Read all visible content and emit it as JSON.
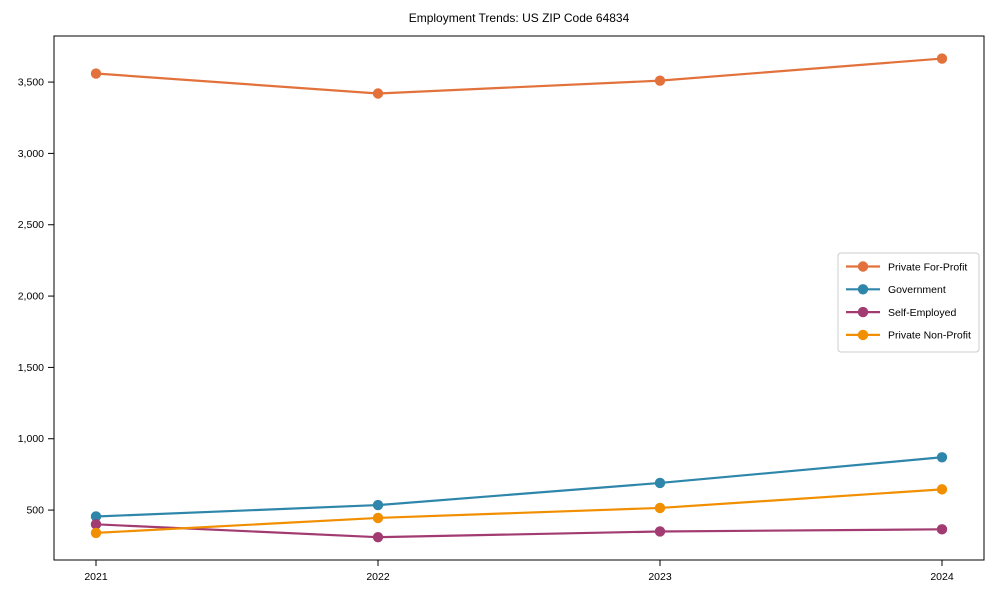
{
  "chart_data": {
    "type": "line",
    "title": "Employment Trends: US ZIP Code 64834",
    "xlabel": "",
    "ylabel": "",
    "categories": [
      "2021",
      "2022",
      "2023",
      "2024"
    ],
    "x": [
      2021,
      2022,
      2023,
      2024
    ],
    "series": [
      {
        "name": "Private For-Profit",
        "color": "#E2713B",
        "values": [
          3560,
          3420,
          3510,
          3665
        ]
      },
      {
        "name": "Government",
        "color": "#2E86AB",
        "values": [
          455,
          535,
          690,
          870
        ]
      },
      {
        "name": "Self-Employed",
        "color": "#A23B72",
        "values": [
          400,
          310,
          350,
          365
        ]
      },
      {
        "name": "Private Non-Profit",
        "color": "#F18F01",
        "values": [
          340,
          445,
          515,
          645
        ]
      }
    ],
    "yticks": [
      500,
      1000,
      1500,
      2000,
      2500,
      3000,
      3500
    ],
    "ytick_labels": [
      "500",
      "1,000",
      "1,500",
      "2,000",
      "2,500",
      "3,000",
      "3,500"
    ],
    "ylim": [
      150,
      3823
    ],
    "grid": false,
    "legend_position": "center-right",
    "marker": "circle",
    "line_width": 2.2,
    "marker_radius": 5.2,
    "axis_color": "#000000",
    "background": "#ffffff",
    "legend_border_color": "#cccccc"
  }
}
